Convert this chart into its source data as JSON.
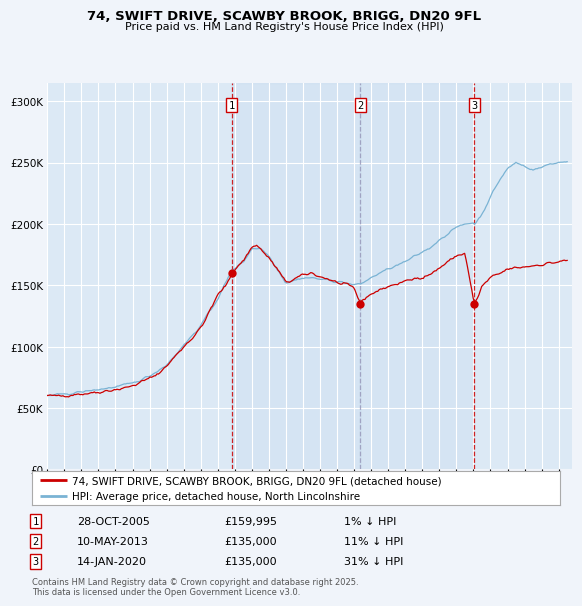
{
  "title_line1": "74, SWIFT DRIVE, SCAWBY BROOK, BRIGG, DN20 9FL",
  "title_line2": "Price paid vs. HM Land Registry's House Price Index (HPI)",
  "ylabel_ticks": [
    "£0",
    "£50K",
    "£100K",
    "£150K",
    "£200K",
    "£250K",
    "£300K"
  ],
  "ytick_values": [
    0,
    50000,
    100000,
    150000,
    200000,
    250000,
    300000
  ],
  "ylim": [
    0,
    315000
  ],
  "xlim_start": 1995.0,
  "xlim_end": 2025.8,
  "background_color": "#f0f4fa",
  "plot_bg_color": "#dce9f5",
  "grid_color": "#ffffff",
  "red_line_color": "#cc0000",
  "blue_line_color": "#7ab3d4",
  "sale1_date_num": 2005.83,
  "sale1_price": 159995,
  "sale1_label": "1",
  "sale1_date_str": "28-OCT-2005",
  "sale1_price_str": "£159,995",
  "sale1_hpi_str": "1% ↓ HPI",
  "sale2_date_num": 2013.36,
  "sale2_price": 135000,
  "sale2_label": "2",
  "sale2_date_str": "10-MAY-2013",
  "sale2_price_str": "£135,000",
  "sale2_hpi_str": "11% ↓ HPI",
  "sale3_date_num": 2020.04,
  "sale3_price": 135000,
  "sale3_label": "3",
  "sale3_date_str": "14-JAN-2020",
  "sale3_price_str": "£135,000",
  "sale3_hpi_str": "31% ↓ HPI",
  "legend_red_label": "74, SWIFT DRIVE, SCAWBY BROOK, BRIGG, DN20 9FL (detached house)",
  "legend_blue_label": "HPI: Average price, detached house, North Lincolnshire",
  "footnote": "Contains HM Land Registry data © Crown copyright and database right 2025.\nThis data is licensed under the Open Government Licence v3.0."
}
